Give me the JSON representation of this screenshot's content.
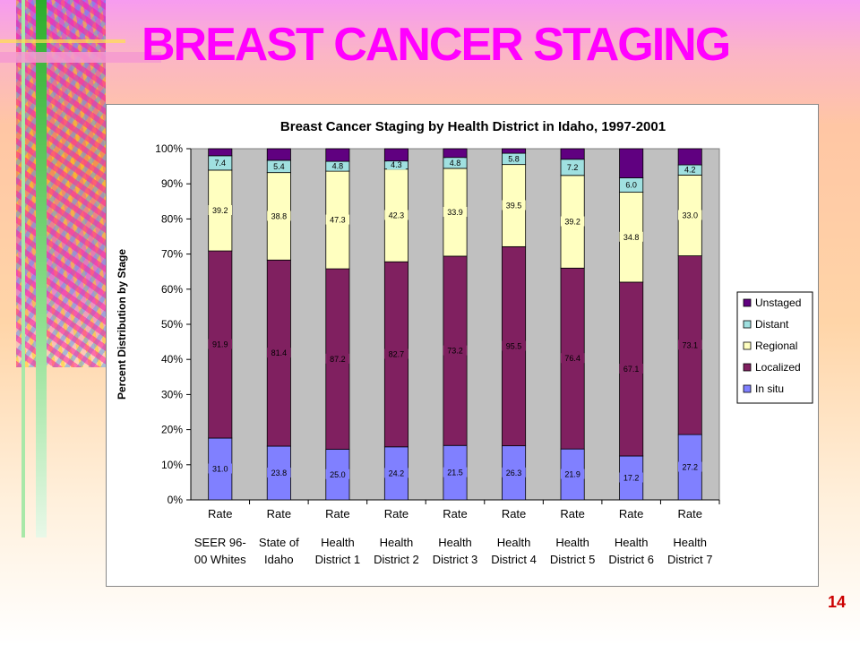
{
  "slide": {
    "title": "BREAST CANCER STAGING",
    "page_number": "14"
  },
  "chart_data": {
    "type": "bar",
    "stacked": true,
    "title": "Breast Cancer Staging by Health District in Idaho, 1997-2001",
    "ylabel": "Percent Distribution by Stage",
    "xlabel": "",
    "ylim": [
      0,
      100
    ],
    "y_ticks": [
      "0%",
      "10%",
      "20%",
      "30%",
      "40%",
      "50%",
      "60%",
      "70%",
      "80%",
      "90%",
      "100%"
    ],
    "categories": [
      [
        "Rate",
        "SEER 96-",
        "00 Whites"
      ],
      [
        "Rate",
        "State of",
        "Idaho"
      ],
      [
        "Rate",
        "Health",
        "District 1"
      ],
      [
        "Rate",
        "Health",
        "District 2"
      ],
      [
        "Rate",
        "Health",
        "District 3"
      ],
      [
        "Rate",
        "Health",
        "District 4"
      ],
      [
        "Rate",
        "Health",
        "District 5"
      ],
      [
        "Rate",
        "Health",
        "District 6"
      ],
      [
        "Rate",
        "Health",
        "District 7"
      ]
    ],
    "series": [
      {
        "name": "In situ",
        "color": "#8080ff",
        "values": [
          17.6,
          15.3,
          14.4,
          15.1,
          15.5,
          15.4,
          14.5,
          12.5,
          18.6
        ],
        "labels": [
          "31.0",
          "23.8",
          "25.0",
          "24.2",
          "21.5",
          "26.3",
          "21.9",
          "17.2",
          "27.2"
        ]
      },
      {
        "name": "Localized",
        "color": "#802060",
        "values": [
          53.3,
          53.0,
          51.4,
          52.7,
          53.9,
          56.7,
          51.5,
          49.5,
          50.9
        ],
        "labels": [
          "91.9",
          "81.4",
          "87.2",
          "82.7",
          "73.2",
          "95.5",
          "76.4",
          "67.1",
          "73.1"
        ]
      },
      {
        "name": "Regional",
        "color": "#ffffc0",
        "values": [
          23.0,
          24.9,
          27.8,
          26.4,
          25.0,
          23.4,
          26.4,
          25.6,
          23.0
        ],
        "labels": [
          "39.2",
          "38.8",
          "47.3",
          "42.3",
          "33.9",
          "39.5",
          "39.2",
          "34.8",
          "33.0"
        ]
      },
      {
        "name": "Distant",
        "color": "#a0e0e0",
        "values": [
          4.1,
          3.5,
          2.8,
          2.3,
          3.1,
          3.2,
          4.6,
          4.1,
          2.9
        ],
        "labels": [
          "7.4",
          "5.4",
          "4.8",
          "4.3",
          "4.8",
          "5.8",
          "7.2",
          "6.0",
          "4.2"
        ]
      },
      {
        "name": "Unstaged",
        "color": "#600080",
        "values": [
          2.0,
          3.3,
          3.6,
          3.5,
          2.5,
          1.3,
          3.0,
          8.3,
          4.6
        ],
        "labels": [
          "",
          "",
          "",
          "",
          "",
          "",
          "",
          "",
          ""
        ]
      }
    ],
    "legend": {
      "position": "right",
      "order": [
        "Unstaged",
        "Distant",
        "Regional",
        "Localized",
        "In situ"
      ]
    },
    "grid": false,
    "plot_background": "#c0c0c0"
  }
}
